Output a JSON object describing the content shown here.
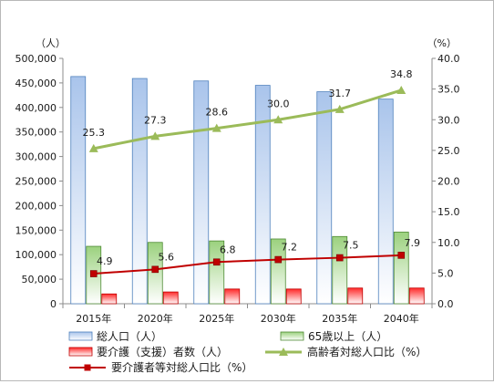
{
  "chart_data": {
    "type": "bar",
    "categories": [
      "2015年",
      "2020年",
      "2025年",
      "2030年",
      "2035年",
      "2040年"
    ],
    "series": [
      {
        "name": "総人口（人）",
        "kind": "bar",
        "axis": "left",
        "color": "#a9c4eb",
        "values": [
          463000,
          459000,
          454000,
          445000,
          432000,
          417000
        ]
      },
      {
        "name": "65歳以上（人）",
        "kind": "bar",
        "axis": "left",
        "color": "#9bd17e",
        "values": [
          117000,
          125000,
          128000,
          132000,
          137000,
          146000
        ]
      },
      {
        "name": "要介護（支援）者数（人）",
        "kind": "bar",
        "axis": "left",
        "color": "#ff2a2a",
        "values": [
          20000,
          24000,
          30000,
          30000,
          32000,
          32000
        ]
      },
      {
        "name": "高齢者対総人口比（%）",
        "kind": "line",
        "axis": "right",
        "color": "#9bbb59",
        "values": [
          25.3,
          27.3,
          28.6,
          30.0,
          31.7,
          34.8
        ],
        "labels": [
          "25.3",
          "27.3",
          "28.6",
          "30.0",
          "31.7",
          "34.8"
        ]
      },
      {
        "name": "要介護者等対総人口比（%）",
        "kind": "line",
        "axis": "right",
        "color": "#c00000",
        "values": [
          4.9,
          5.6,
          6.8,
          7.2,
          7.5,
          7.9
        ],
        "labels": [
          "4.9",
          "5.6",
          "6.8",
          "7.2",
          "7.5",
          "7.9"
        ]
      }
    ],
    "y_left": {
      "unit": "（人）",
      "ylim": [
        0,
        500000
      ],
      "ticks": [
        "0",
        "50,000",
        "100,000",
        "150,000",
        "200,000",
        "250,000",
        "300,000",
        "350,000",
        "400,000",
        "450,000",
        "500,000"
      ]
    },
    "y_right": {
      "unit": "（%）",
      "ylim": [
        0,
        40
      ],
      "ticks": [
        "0.0",
        "5.0",
        "10.0",
        "15.0",
        "20.0",
        "25.0",
        "30.0",
        "35.0",
        "40.0"
      ]
    },
    "grid": false,
    "legend_position": "bottom"
  }
}
